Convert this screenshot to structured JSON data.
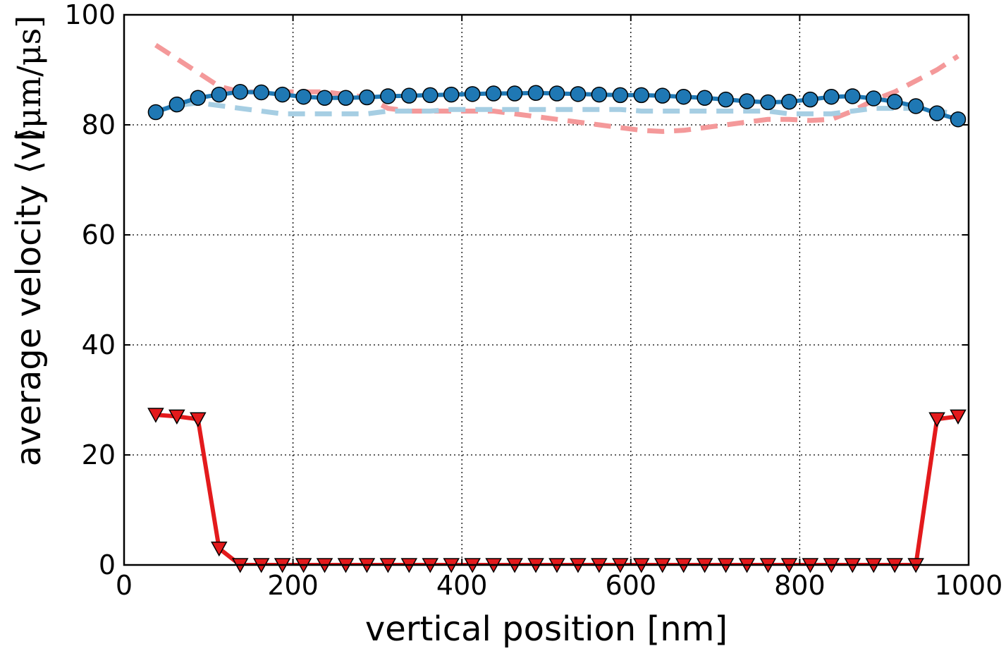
{
  "chart_data": {
    "type": "line",
    "title": "",
    "xlabel": "vertical position [nm]",
    "ylabel": "average velocity ⟨v⟩",
    "ylabel_unit": "[μm/μs]",
    "xlim": [
      0,
      1000
    ],
    "ylim": [
      0,
      100
    ],
    "xticks": [
      0,
      200,
      400,
      600,
      800,
      1000
    ],
    "yticks": [
      0,
      20,
      40,
      60,
      80,
      100
    ],
    "grid": true,
    "legend": "none",
    "x": [
      37.5,
      62.5,
      87.5,
      112.5,
      137.5,
      162.5,
      187.5,
      212.5,
      237.5,
      262.5,
      287.5,
      312.5,
      337.5,
      362.5,
      387.5,
      412.5,
      437.5,
      462.5,
      487.5,
      512.5,
      537.5,
      562.5,
      587.5,
      612.5,
      637.5,
      662.5,
      687.5,
      712.5,
      737.5,
      762.5,
      787.5,
      812.5,
      837.5,
      862.5,
      887.5,
      912.5,
      937.5,
      962.5,
      987.5
    ],
    "series": [
      {
        "style": "dashed",
        "color": "#f4999a",
        "values": [
          94.5,
          92.0,
          89.5,
          87.0,
          86.0,
          86.0,
          86.0,
          86.0,
          86.0,
          85.5,
          85.0,
          83.0,
          82.5,
          82.5,
          82.5,
          82.5,
          82.5,
          82.0,
          81.5,
          81.0,
          80.5,
          80.0,
          79.5,
          79.0,
          78.8,
          79.0,
          79.5,
          80.0,
          80.5,
          81.0,
          81.0,
          80.8,
          81.0,
          82.5,
          84.5,
          86.0,
          88.0,
          90.0,
          92.5
        ]
      },
      {
        "style": "dashed",
        "color": "#a6cee3",
        "values": [
          82.5,
          83.5,
          84.0,
          83.5,
          83.0,
          82.5,
          82.0,
          82.0,
          82.0,
          82.0,
          82.0,
          82.5,
          82.5,
          82.5,
          82.8,
          82.8,
          82.8,
          82.8,
          82.8,
          82.8,
          82.8,
          82.8,
          82.8,
          82.5,
          82.5,
          82.5,
          82.5,
          82.5,
          82.5,
          82.5,
          82.0,
          82.0,
          82.0,
          82.5,
          83.0,
          83.0,
          83.0,
          82.5,
          82.0
        ]
      },
      {
        "style": "solid",
        "marker": "circle",
        "color": "#1f78b4",
        "values": [
          82.3,
          83.7,
          84.9,
          85.5,
          86.0,
          85.9,
          85.5,
          85.1,
          84.9,
          84.9,
          85.0,
          85.2,
          85.3,
          85.4,
          85.5,
          85.6,
          85.7,
          85.7,
          85.8,
          85.7,
          85.6,
          85.5,
          85.4,
          85.4,
          85.3,
          85.1,
          84.9,
          84.6,
          84.3,
          84.1,
          84.2,
          84.6,
          85.1,
          85.2,
          84.8,
          84.2,
          83.4,
          82.1,
          81.0
        ]
      },
      {
        "style": "solid",
        "marker": "triangle-down",
        "color": "#e31a1c",
        "values": [
          27.3,
          27.0,
          26.5,
          3.0,
          0,
          0,
          0,
          0,
          0,
          0,
          0,
          0,
          0,
          0,
          0,
          0,
          0,
          0,
          0,
          0,
          0,
          0,
          0,
          0,
          0,
          0,
          0,
          0,
          0,
          0,
          0,
          0,
          0,
          0,
          0,
          0,
          0,
          26.5,
          27.0
        ]
      }
    ]
  }
}
